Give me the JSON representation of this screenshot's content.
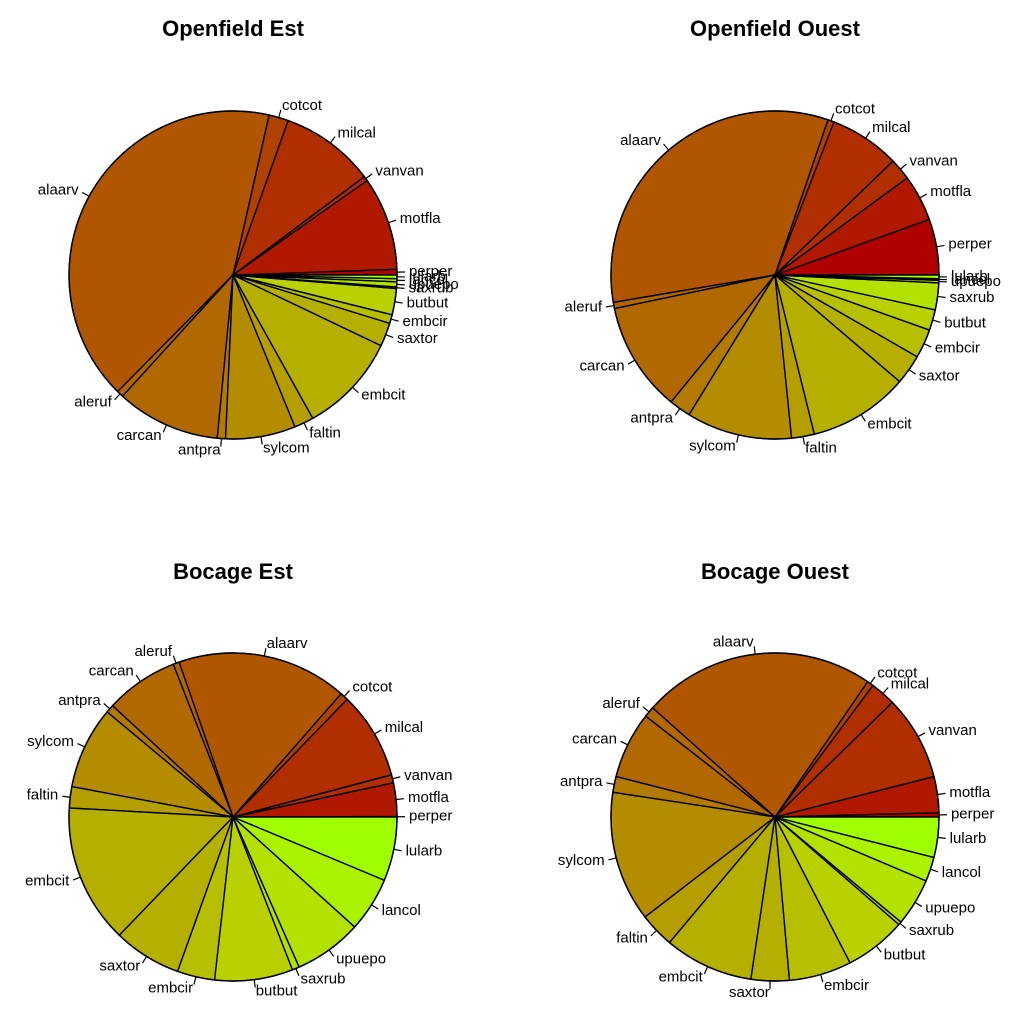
{
  "palette": [
    "#B00000",
    "#B01800",
    "#B02E00",
    "#B04200",
    "#B15600",
    "#B26800",
    "#B37A00",
    "#B48C00",
    "#B59E00",
    "#B5B000",
    "#B7C000",
    "#B9D100",
    "#B4E200",
    "#AAF200",
    "#A0FF00"
  ],
  "chart_data": [
    {
      "type": "pie",
      "title": "Openfield Est",
      "clockwise": false,
      "start_angle_deg": 0,
      "slices": [
        {
          "label": "perper",
          "value": 0.55
        },
        {
          "label": "motfla",
          "value": 9.1
        },
        {
          "label": "vanvan",
          "value": 0.45
        },
        {
          "label": "milcal",
          "value": 9.2
        },
        {
          "label": "cotcot",
          "value": 1.9
        },
        {
          "label": "alaarv",
          "value": 40.6
        },
        {
          "label": "aleruf",
          "value": 0.65
        },
        {
          "label": "carcan",
          "value": 10.1
        },
        {
          "label": "antpra",
          "value": 0.8
        },
        {
          "label": "sylcom",
          "value": 6.8
        },
        {
          "label": "faltin",
          "value": 1.9
        },
        {
          "label": "embcit",
          "value": 9.7
        },
        {
          "label": "saxtor",
          "value": 2.3
        },
        {
          "label": "embcir",
          "value": 0.85
        },
        {
          "label": "butbut",
          "value": 2.55
        },
        {
          "label": "saxrub",
          "value": 0.15
        },
        {
          "label": "upuepo",
          "value": 0.5
        },
        {
          "label": "lancol",
          "value": 0.3
        },
        {
          "label": "lularb",
          "value": 0.35
        }
      ]
    },
    {
      "type": "pie",
      "title": "Openfield Ouest",
      "clockwise": false,
      "start_angle_deg": 0,
      "slices": [
        {
          "label": "perper",
          "value": 5.4
        },
        {
          "label": "motfla",
          "value": 4.5
        },
        {
          "label": "vanvan",
          "value": 2.1
        },
        {
          "label": "milcal",
          "value": 6.8
        },
        {
          "label": "cotcot",
          "value": 0.6
        },
        {
          "label": "alaarv",
          "value": 32.3
        },
        {
          "label": "aleruf",
          "value": 0.6
        },
        {
          "label": "carcan",
          "value": 10.6
        },
        {
          "label": "antpra",
          "value": 2.1
        },
        {
          "label": "sylcom",
          "value": 10.2
        },
        {
          "label": "faltin",
          "value": 2.2
        },
        {
          "label": "embcit",
          "value": 9.7
        },
        {
          "label": "saxtor",
          "value": 2.9
        },
        {
          "label": "embcir",
          "value": 2.8
        },
        {
          "label": "butbut",
          "value": 2.0
        },
        {
          "label": "saxrub",
          "value": 2.6
        },
        {
          "label": "upuepo",
          "value": 0.25
        },
        {
          "label": "lancol",
          "value": 0.15
        },
        {
          "label": "lularb",
          "value": 0.35
        }
      ]
    },
    {
      "type": "pie",
      "title": "Bocage Est",
      "clockwise": false,
      "start_angle_deg": 0,
      "slices": [
        {
          "label": "perper",
          "value": 0.05
        },
        {
          "label": "motfla",
          "value": 3.3
        },
        {
          "label": "vanvan",
          "value": 0.8
        },
        {
          "label": "milcal",
          "value": 8.6
        },
        {
          "label": "cotcot",
          "value": 0.8
        },
        {
          "label": "alaarv",
          "value": 16.8
        },
        {
          "label": "aleruf",
          "value": 0.6
        },
        {
          "label": "carcan",
          "value": 7.2
        },
        {
          "label": "antpra",
          "value": 0.8
        },
        {
          "label": "sylcom",
          "value": 8.1
        },
        {
          "label": "faltin",
          "value": 2.1
        },
        {
          "label": "embcit",
          "value": 13.7
        },
        {
          "label": "saxtor",
          "value": 6.7
        },
        {
          "label": "embcir",
          "value": 3.7
        },
        {
          "label": "butbut",
          "value": 7.7
        },
        {
          "label": "saxrub",
          "value": 0.7
        },
        {
          "label": "upuepo",
          "value": 6.7
        },
        {
          "label": "lancol",
          "value": 5.4
        },
        {
          "label": "lularb",
          "value": 6.3
        }
      ]
    },
    {
      "type": "pie",
      "title": "Bocage Ouest",
      "clockwise": false,
      "start_angle_deg": 0,
      "slices": [
        {
          "label": "perper",
          "value": 0.4
        },
        {
          "label": "motfla",
          "value": 3.4
        },
        {
          "label": "vanvan",
          "value": 8.0
        },
        {
          "label": "milcal",
          "value": 2.4
        },
        {
          "label": "cotcot",
          "value": 0.6
        },
        {
          "label": "alaarv",
          "value": 22.0
        },
        {
          "label": "aleruf",
          "value": 1.0
        },
        {
          "label": "carcan",
          "value": 6.3
        },
        {
          "label": "antpra",
          "value": 1.5
        },
        {
          "label": "sylcom",
          "value": 12.3
        },
        {
          "label": "faltin",
          "value": 3.3
        },
        {
          "label": "embcit",
          "value": 8.4
        },
        {
          "label": "saxtor",
          "value": 3.6
        },
        {
          "label": "embcir",
          "value": 5.9
        },
        {
          "label": "butbut",
          "value": 5.8
        },
        {
          "label": "saxrub",
          "value": 0.3
        },
        {
          "label": "upuepo",
          "value": 4.5
        },
        {
          "label": "lancol",
          "value": 2.3
        },
        {
          "label": "lularb",
          "value": 3.8
        }
      ]
    }
  ]
}
